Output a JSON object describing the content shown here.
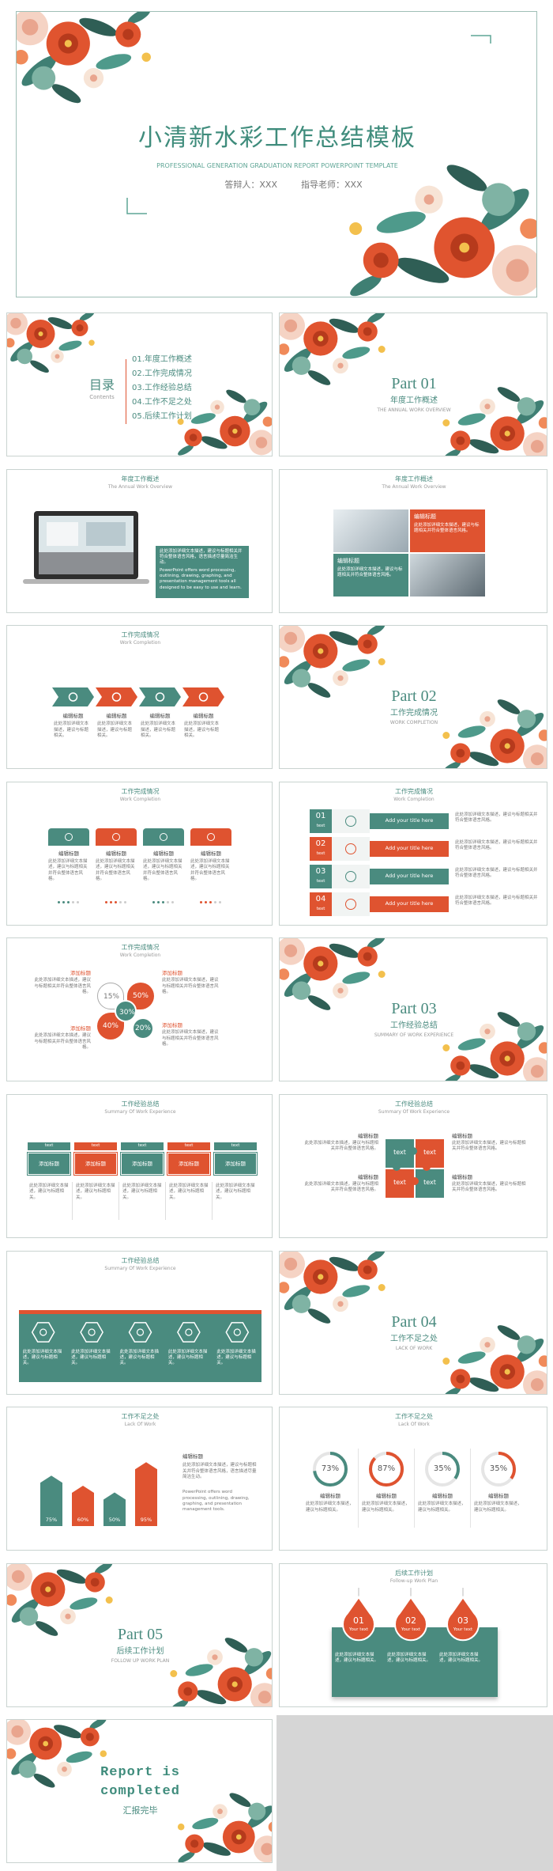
{
  "cover": {
    "title": "小清新水彩工作总结模板",
    "subtitle": "PROFESSIONAL GENERATION GRADUATION REPORT POWERPOINT TEMPLATE",
    "presenter": "答辩人：XXX",
    "advisor": "指导老师：XXX"
  },
  "toc": {
    "title": "目录",
    "subtitle": "Contents",
    "items": [
      "01.年度工作概述",
      "02.工作完成情况",
      "03.工作经验总结",
      "04.工作不足之处",
      "05.后续工作计划"
    ]
  },
  "parts": [
    {
      "label": "Part 01",
      "title": "年度工作概述",
      "subtitle": "THE ANNUAL WORK OVERVIEW"
    },
    {
      "label": "Part 02",
      "title": "工作完成情况",
      "subtitle": "WORK COMPLETION"
    },
    {
      "label": "Part 03",
      "title": "工作经验总结",
      "subtitle": "SUMMARY OF WORK EXPERIENCE"
    },
    {
      "label": "Part 04",
      "title": "工作不足之处",
      "subtitle": "LACK OF WORK"
    },
    {
      "label": "Part 05",
      "title": "后续工作计划",
      "subtitle": "FOLLOW UP WORK PLAN"
    }
  ],
  "overview_a": {
    "header": "年度工作概述",
    "subheader": "The Annual Work Overview",
    "paragraphs": [
      "此处添加详细文本描述，建议与标题相关并符合整体语言风格，语言描述尽量简洁生动。",
      "PowerPoint offers word processing, outlining, drawing, graphing, and presentation management tools all designed to be easy to use and learn."
    ]
  },
  "overview_b": {
    "header": "年度工作概述",
    "subheader": "The Annual Work Overview",
    "boxes": [
      {
        "title": "编辑标题",
        "text": "此处添加详细文本描述，建议与标题相关并符合整体语言风格。"
      },
      {
        "title": "编辑标题",
        "text": "此处添加详细文本描述，建议与标题相关并符合整体语言风格。"
      }
    ]
  },
  "completion_a": {
    "header": "工作完成情况",
    "subheader": "Work Completion",
    "items": [
      {
        "title": "编辑标题",
        "text": "此处添加详细文本描述，建议与标题相关。"
      },
      {
        "title": "编辑标题",
        "text": "此处添加详细文本描述，建议与标题相关。"
      },
      {
        "title": "编辑标题",
        "text": "此处添加详细文本描述，建议与标题相关。"
      },
      {
        "title": "编辑标题",
        "text": "此处添加详细文本描述，建议与标题相关。"
      }
    ]
  },
  "completion_b": {
    "header": "工作完成情况",
    "subheader": "Work Completion",
    "items": [
      {
        "title": "编辑标题",
        "text": "此处添加详细文本描述，建议与标题相关并符合整体语言风格。"
      },
      {
        "title": "编辑标题",
        "text": "此处添加详细文本描述，建议与标题相关并符合整体语言风格。"
      },
      {
        "title": "编辑标题",
        "text": "此处添加详细文本描述，建议与标题相关并符合整体语言风格。"
      },
      {
        "title": "编辑标题",
        "text": "此处添加详细文本描述，建议与标题相关并符合整体语言风格。"
      }
    ]
  },
  "completion_c": {
    "header": "工作完成情况",
    "subheader": "Work Completion",
    "items": [
      {
        "number": "01",
        "tag": "text",
        "title": "Add your title here",
        "text": "此处添加详细文本描述，建议与标题相关并符合整体语言风格。"
      },
      {
        "number": "02",
        "tag": "text",
        "title": "Add your title here",
        "text": "此处添加详细文本描述，建议与标题相关并符合整体语言风格。"
      },
      {
        "number": "03",
        "tag": "text",
        "title": "Add your title here",
        "text": "此处添加详细文本描述，建议与标题相关并符合整体语言风格。"
      },
      {
        "number": "04",
        "tag": "text",
        "title": "Add your title here",
        "text": "此处添加详细文本描述，建议与标题相关并符合整体语言风格。"
      }
    ]
  },
  "completion_d": {
    "header": "工作完成情况",
    "subheader": "Work Completion",
    "items": [
      {
        "title": "添加标题",
        "text": "此处添加详细文本描述，建议与标题相关并符合整体语言风格。"
      },
      {
        "title": "添加标题",
        "text": "此处添加详细文本描述，建议与标题相关并符合整体语言风格。"
      },
      {
        "title": "添加标题",
        "text": "此处添加详细文本描述，建议与标题相关并符合整体语言风格。"
      },
      {
        "title": "添加标题",
        "text": "此处添加详细文本描述，建议与标题相关并符合整体语言风格。"
      }
    ],
    "petals": [
      "15%",
      "30%",
      "50%",
      "40%",
      "20%"
    ]
  },
  "experience_a": {
    "header": "工作经验总结",
    "subheader": "Summary Of Work Experience",
    "columns": [
      {
        "tag": "text",
        "title": "添加标题",
        "text": "此处添加详细文本描述，建议与标题相关。"
      },
      {
        "tag": "text",
        "title": "添加标题",
        "text": "此处添加详细文本描述，建议与标题相关。"
      },
      {
        "tag": "text",
        "title": "添加标题",
        "text": "此处添加详细文本描述，建议与标题相关。"
      },
      {
        "tag": "text",
        "title": "添加标题",
        "text": "此处添加详细文本描述，建议与标题相关。"
      },
      {
        "tag": "text",
        "title": "添加标题",
        "text": "此处添加详细文本描述，建议与标题相关。"
      }
    ]
  },
  "experience_b": {
    "header": "工作经验总结",
    "subheader": "Summary Of Work Experience",
    "pieces": [
      "text",
      "text",
      "text",
      "text"
    ],
    "items": [
      {
        "title": "编辑标题",
        "text": "此处添加详细文本描述，建议与标题相关并符合整体语言风格。"
      },
      {
        "title": "编辑标题",
        "text": "此处添加详细文本描述，建议与标题相关并符合整体语言风格。"
      },
      {
        "title": "编辑标题",
        "text": "此处添加详细文本描述，建议与标题相关并符合整体语言风格。"
      },
      {
        "title": "编辑标题",
        "text": "此处添加详细文本描述，建议与标题相关并符合整体语言风格。"
      }
    ]
  },
  "experience_c": {
    "header": "工作经验总结",
    "subheader": "Summary Of Work Experience",
    "items": [
      "此处添加详细文本描述，建议与标题相关。",
      "此处添加详细文本描述，建议与标题相关。",
      "此处添加详细文本描述，建议与标题相关。",
      "此处添加详细文本描述，建议与标题相关。",
      "此处添加详细文本描述，建议与标题相关。"
    ]
  },
  "lack_a": {
    "header": "工作不足之处",
    "subheader": "Lack Of Work",
    "bars": [
      {
        "value": 75,
        "label": "75%"
      },
      {
        "value": 60,
        "label": "60%"
      },
      {
        "value": 50,
        "label": "50%"
      },
      {
        "value": 95,
        "label": "95%"
      }
    ],
    "title": "编辑标题",
    "paragraphs": [
      "此处添加详细文本描述，建议与标题相关并符合整体语言风格，语言描述尽量简洁生动。",
      "PowerPoint offers word processing, outlining, drawing, graphing, and presentation management tools."
    ]
  },
  "lack_b": {
    "header": "工作不足之处",
    "subheader": "Lack Of Work",
    "rings": [
      {
        "value": 73,
        "label": "73%"
      },
      {
        "value": 87,
        "label": "87%"
      },
      {
        "value": 35,
        "label": "35%"
      },
      {
        "value": 35,
        "label": "35%"
      }
    ],
    "items": [
      {
        "title": "编辑标题",
        "text": "此处添加详细文本描述，建议与标题相关。"
      },
      {
        "title": "编辑标题",
        "text": "此处添加详细文本描述，建议与标题相关。"
      },
      {
        "title": "编辑标题",
        "text": "此处添加详细文本描述，建议与标题相关。"
      },
      {
        "title": "编辑标题",
        "text": "此处添加详细文本描述，建议与标题相关。"
      }
    ]
  },
  "plan": {
    "header": "后续工作计划",
    "subheader": "Follow-up Work Plan",
    "drops": [
      {
        "number": "01",
        "label": "Your text"
      },
      {
        "number": "02",
        "label": "Your text"
      },
      {
        "number": "03",
        "label": "Your text"
      }
    ],
    "items": [
      "此处添加详细文本描述，建议与标题相关。",
      "此处添加详细文本描述，建议与标题相关。",
      "此处添加详细文本描述，建议与标题相关。"
    ]
  },
  "ending": {
    "title_lines": [
      "Report is",
      "completed"
    ],
    "subtitle": "汇报完毕"
  }
}
